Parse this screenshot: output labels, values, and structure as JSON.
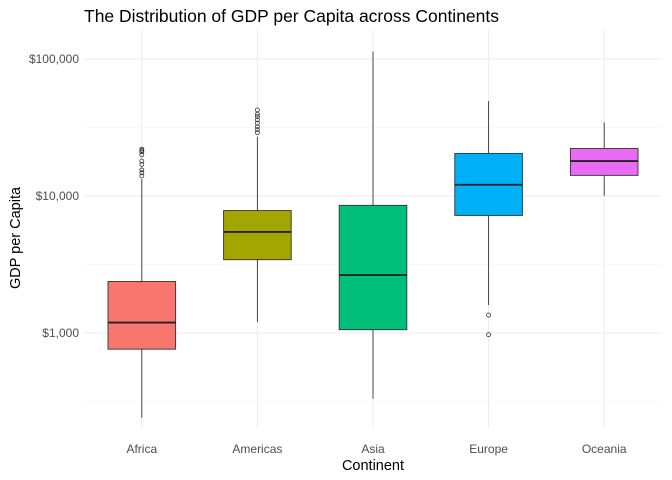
{
  "chart_data": {
    "type": "boxplot",
    "title": "The Distribution of GDP per Capita across Continents",
    "xlabel": "Continent",
    "ylabel": "GDP per Capita",
    "yscale": "log",
    "ylim": [
      190,
      200000
    ],
    "yticks": [
      1000,
      10000,
      100000
    ],
    "ytick_labels": [
      "$1,000",
      "$10,000",
      "$100,000"
    ],
    "grid": true,
    "legend": "none",
    "categories": [
      "Africa",
      "Americas",
      "Asia",
      "Europe",
      "Oceania"
    ],
    "boxes": [
      {
        "category": "Africa",
        "color": "#F8766D",
        "lower_whisker": 241,
        "q1": 762,
        "median": 1192,
        "q3": 2377,
        "upper_whisker": 13300,
        "outliers": [
          14000,
          14800,
          15500,
          17000,
          18000,
          20000,
          21000,
          21500,
          22000
        ]
      },
      {
        "category": "Americas",
        "color": "#A3A500",
        "lower_whisker": 1200,
        "q1": 3428,
        "median": 5465,
        "q3": 7830,
        "upper_whisker": 27000,
        "outliers": [
          29000,
          30500,
          32000,
          34000,
          36000,
          38000,
          39500,
          42500
        ]
      },
      {
        "category": "Asia",
        "color": "#00BF7D",
        "lower_whisker": 331,
        "q1": 1057,
        "median": 2647,
        "q3": 8549,
        "upper_whisker": 113523,
        "outliers": []
      },
      {
        "category": "Europe",
        "color": "#00B0F6",
        "lower_whisker": 1600,
        "q1": 7213,
        "median": 12082,
        "q3": 20461,
        "upper_whisker": 49357,
        "outliers": [
          973,
          1350
        ]
      },
      {
        "category": "Oceania",
        "color": "#E76BF3",
        "lower_whisker": 10040,
        "q1": 14142,
        "median": 17983,
        "q3": 22214,
        "upper_whisker": 34435,
        "outliers": []
      }
    ]
  }
}
